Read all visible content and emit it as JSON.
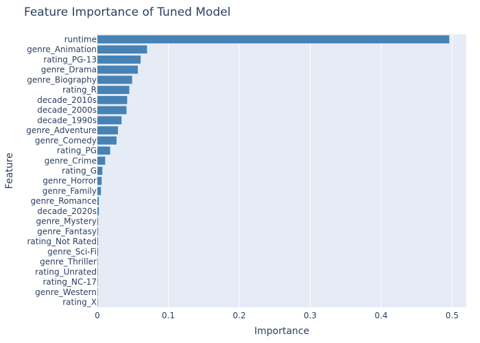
{
  "chart_data": {
    "type": "bar",
    "orientation": "horizontal",
    "title": "Feature Importance of Tuned Model",
    "xlabel": "Importance",
    "ylabel": "Feature",
    "xlim": [
      0,
      0.52
    ],
    "xticks": [
      0,
      0.1,
      0.2,
      0.3,
      0.4,
      0.5
    ],
    "xtick_labels": [
      "0",
      "0.1",
      "0.2",
      "0.3",
      "0.4",
      "0.5"
    ],
    "grid": true,
    "colors": {
      "bar": "#4682b4",
      "plot_bg": "#e5ecf6",
      "grid": "#ffffff",
      "text": "#2a3f5f"
    },
    "categories": [
      "runtime",
      "genre_Animation",
      "rating_PG-13",
      "genre_Drama",
      "genre_Biography",
      "rating_R",
      "decade_2010s",
      "decade_2000s",
      "decade_1990s",
      "genre_Adventure",
      "genre_Comedy",
      "rating_PG",
      "genre_Crime",
      "rating_G",
      "genre_Horror",
      "genre_Family",
      "genre_Romance",
      "decade_2020s",
      "genre_Mystery",
      "genre_Fantasy",
      "rating_Not Rated",
      "genre_Sci-Fi",
      "genre_Thriller",
      "rating_Unrated",
      "rating_NC-17",
      "genre_Western",
      "rating_X"
    ],
    "values": [
      0.496,
      0.07,
      0.061,
      0.057,
      0.049,
      0.045,
      0.042,
      0.041,
      0.034,
      0.029,
      0.027,
      0.018,
      0.011,
      0.007,
      0.006,
      0.005,
      0.002,
      0.002,
      0.001,
      0.001,
      0.001,
      0.001,
      0.0005,
      0.0005,
      0.0003,
      0.0002,
      0.0001
    ]
  }
}
